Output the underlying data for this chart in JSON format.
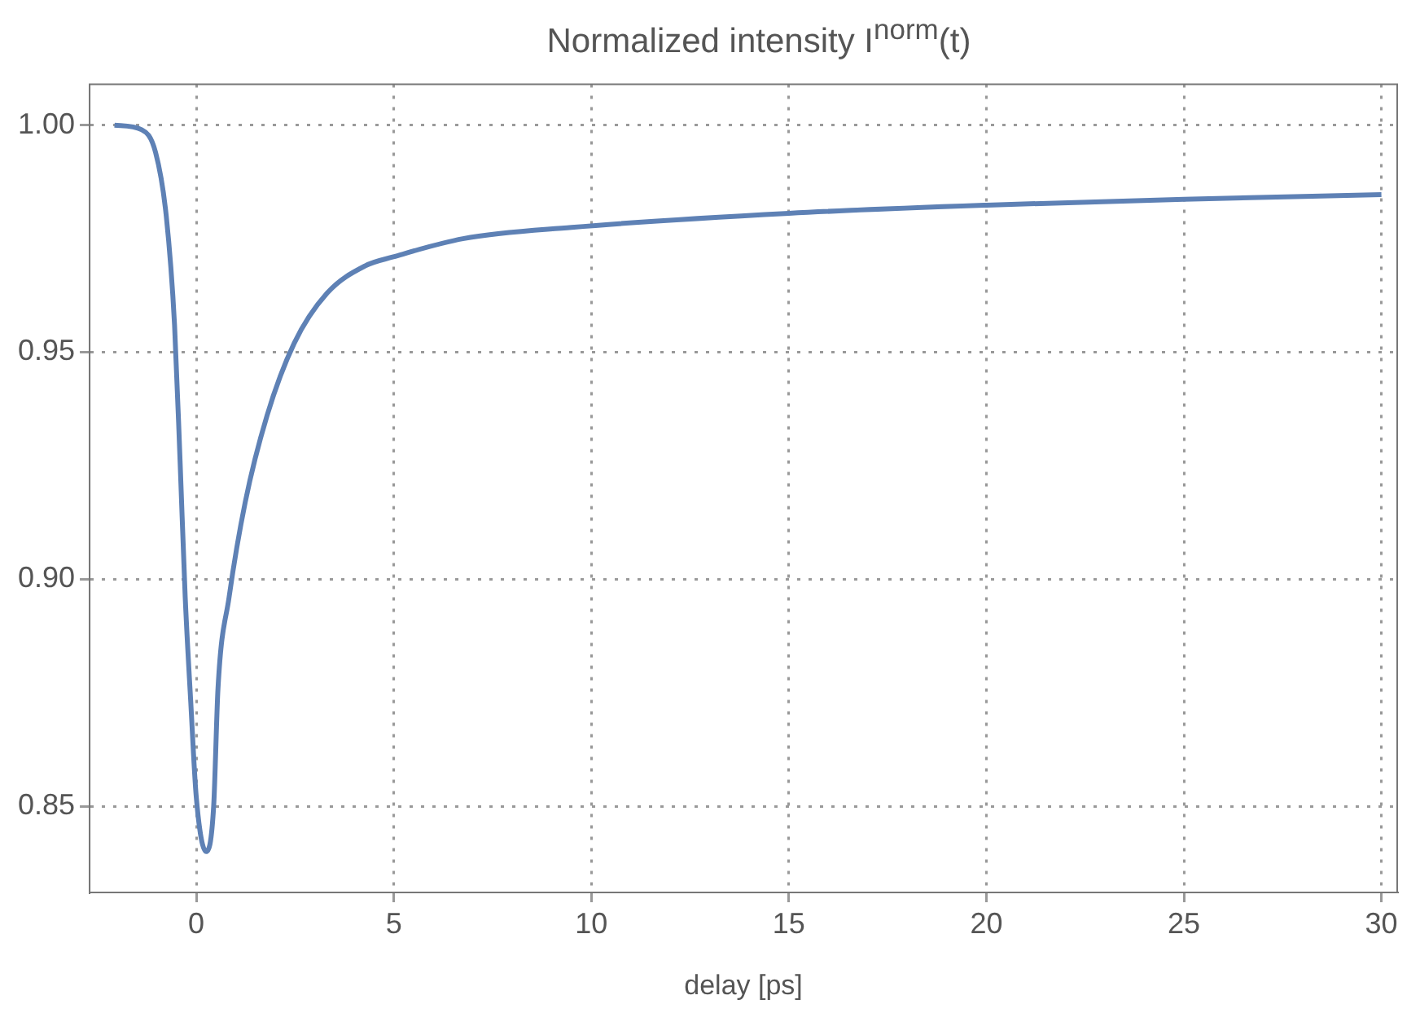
{
  "chart_data": {
    "type": "line",
    "title": "Normalized intensity I$^{norm}$(t)",
    "xlabel": "delay [ps]",
    "x": [
      -2.07,
      -1.38,
      -1.03,
      -0.76,
      -0.55,
      -0.41,
      -0.28,
      -0.14,
      0.0,
      0.25,
      0.44,
      0.55,
      0.83,
      1.24,
      1.79,
      2.48,
      3.31,
      4.27,
      4.99,
      6.75,
      9.5,
      15.0,
      20.0,
      25.0,
      30.0
    ],
    "series": [
      {
        "color": "#5e81b5",
        "values": [
          1.0,
          0.999,
          0.994,
          0.98,
          0.956,
          0.926,
          0.896,
          0.873,
          0.852,
          0.84,
          0.85,
          0.876,
          0.896,
          0.917,
          0.936,
          0.952,
          0.963,
          0.969,
          0.971,
          0.975,
          0.9775,
          0.9806,
          0.9824,
          0.9837,
          0.9847
        ]
      }
    ],
    "xlim": [
      -2.7,
      30.4
    ],
    "xticks": [
      0,
      5,
      10,
      15,
      20,
      25,
      30
    ],
    "ylim": [
      0.831,
      1.009
    ],
    "yticks": [
      {
        "value": 0.85,
        "label": "0.85"
      },
      {
        "value": 0.9,
        "label": "0.90"
      },
      {
        "value": 0.95,
        "label": "0.95"
      },
      {
        "value": 1,
        "label": "1.00"
      }
    ],
    "grid": true,
    "legend": false,
    "marker": "none",
    "line_style": "solid"
  }
}
